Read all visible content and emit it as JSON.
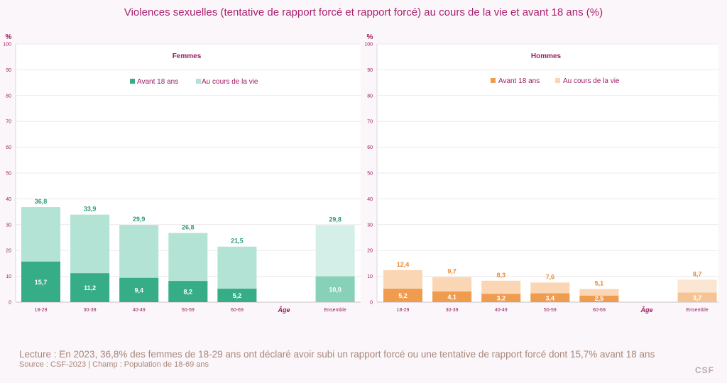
{
  "title": "Violences sexuelles (tentative de rapport forcé et rapport forcé) au cours de la vie et avant 18 ans (%)",
  "reading_note": "Lecture : En 2023, 36,8% des femmes de 18-29 ans ont déclaré avoir subi un rapport forcé ou une tentative de rapport forcé dont  15,7% avant 18 ans",
  "source_note": "Source : CSF-2023  |  Champ : Population de 18-69 ans",
  "logo": "CSF",
  "chart_data": [
    {
      "type": "bar",
      "title": "Femmes",
      "ylabel": "%",
      "xlabel": "Âge",
      "ylim": [
        0,
        100
      ],
      "yticks": [
        0,
        10,
        20,
        30,
        40,
        50,
        60,
        70,
        80,
        90,
        100
      ],
      "categories": [
        "18-29",
        "30-39",
        "40-49",
        "50-59",
        "60-69",
        "",
        "Ensemble"
      ],
      "series": [
        {
          "name": "Au cours de la vie",
          "values": [
            36.8,
            33.9,
            29.9,
            26.8,
            21.5,
            null,
            29.8
          ],
          "labels": [
            "36,8",
            "33,9",
            "29,9",
            "26,8",
            "21,5",
            "",
            "29,8"
          ]
        },
        {
          "name": "Avant 18 ans",
          "values": [
            15.7,
            11.2,
            9.4,
            8.2,
            5.2,
            null,
            10.0
          ],
          "labels": [
            "15,7",
            "11,2",
            "9,4",
            "8,2",
            "5,2",
            "",
            "10,0"
          ]
        }
      ],
      "legend_order": [
        "Avant 18 ans",
        "Au cours de la vie"
      ],
      "colors": {
        "life": "#b3e3d4",
        "life_total": "#d3efe7",
        "before": "#36ad86",
        "before_total": "#88d1b9",
        "label": "#2e9a75",
        "inner_label": "#ffffff"
      }
    },
    {
      "type": "bar",
      "title": "Hommes",
      "ylabel": "%",
      "xlabel": "Âge",
      "ylim": [
        0,
        100
      ],
      "yticks": [
        0,
        10,
        20,
        30,
        40,
        50,
        60,
        70,
        80,
        90,
        100
      ],
      "categories": [
        "18-29",
        "30-39",
        "40-49",
        "50-59",
        "60-69",
        "",
        "Ensemble"
      ],
      "series": [
        {
          "name": "Au cours de la vie",
          "values": [
            12.4,
            9.7,
            8.3,
            7.6,
            5.1,
            null,
            8.7
          ],
          "labels": [
            "12,4",
            "9,7",
            "8,3",
            "7,6",
            "5,1",
            "",
            "8,7"
          ]
        },
        {
          "name": "Avant 18 ans",
          "values": [
            5.2,
            4.1,
            3.2,
            3.4,
            2.5,
            null,
            3.7
          ],
          "labels": [
            "5,2",
            "4,1",
            "3,2",
            "3,4",
            "2,5",
            "",
            "3,7"
          ]
        }
      ],
      "legend_order": [
        "Avant 18 ans",
        "Au cours de la vie"
      ],
      "colors": {
        "life": "#fad6b4",
        "life_total": "#fbe6d3",
        "before": "#ef9c4e",
        "before_total": "#f6c494",
        "label": "#e58a34",
        "inner_label": "#ffffff"
      }
    }
  ]
}
